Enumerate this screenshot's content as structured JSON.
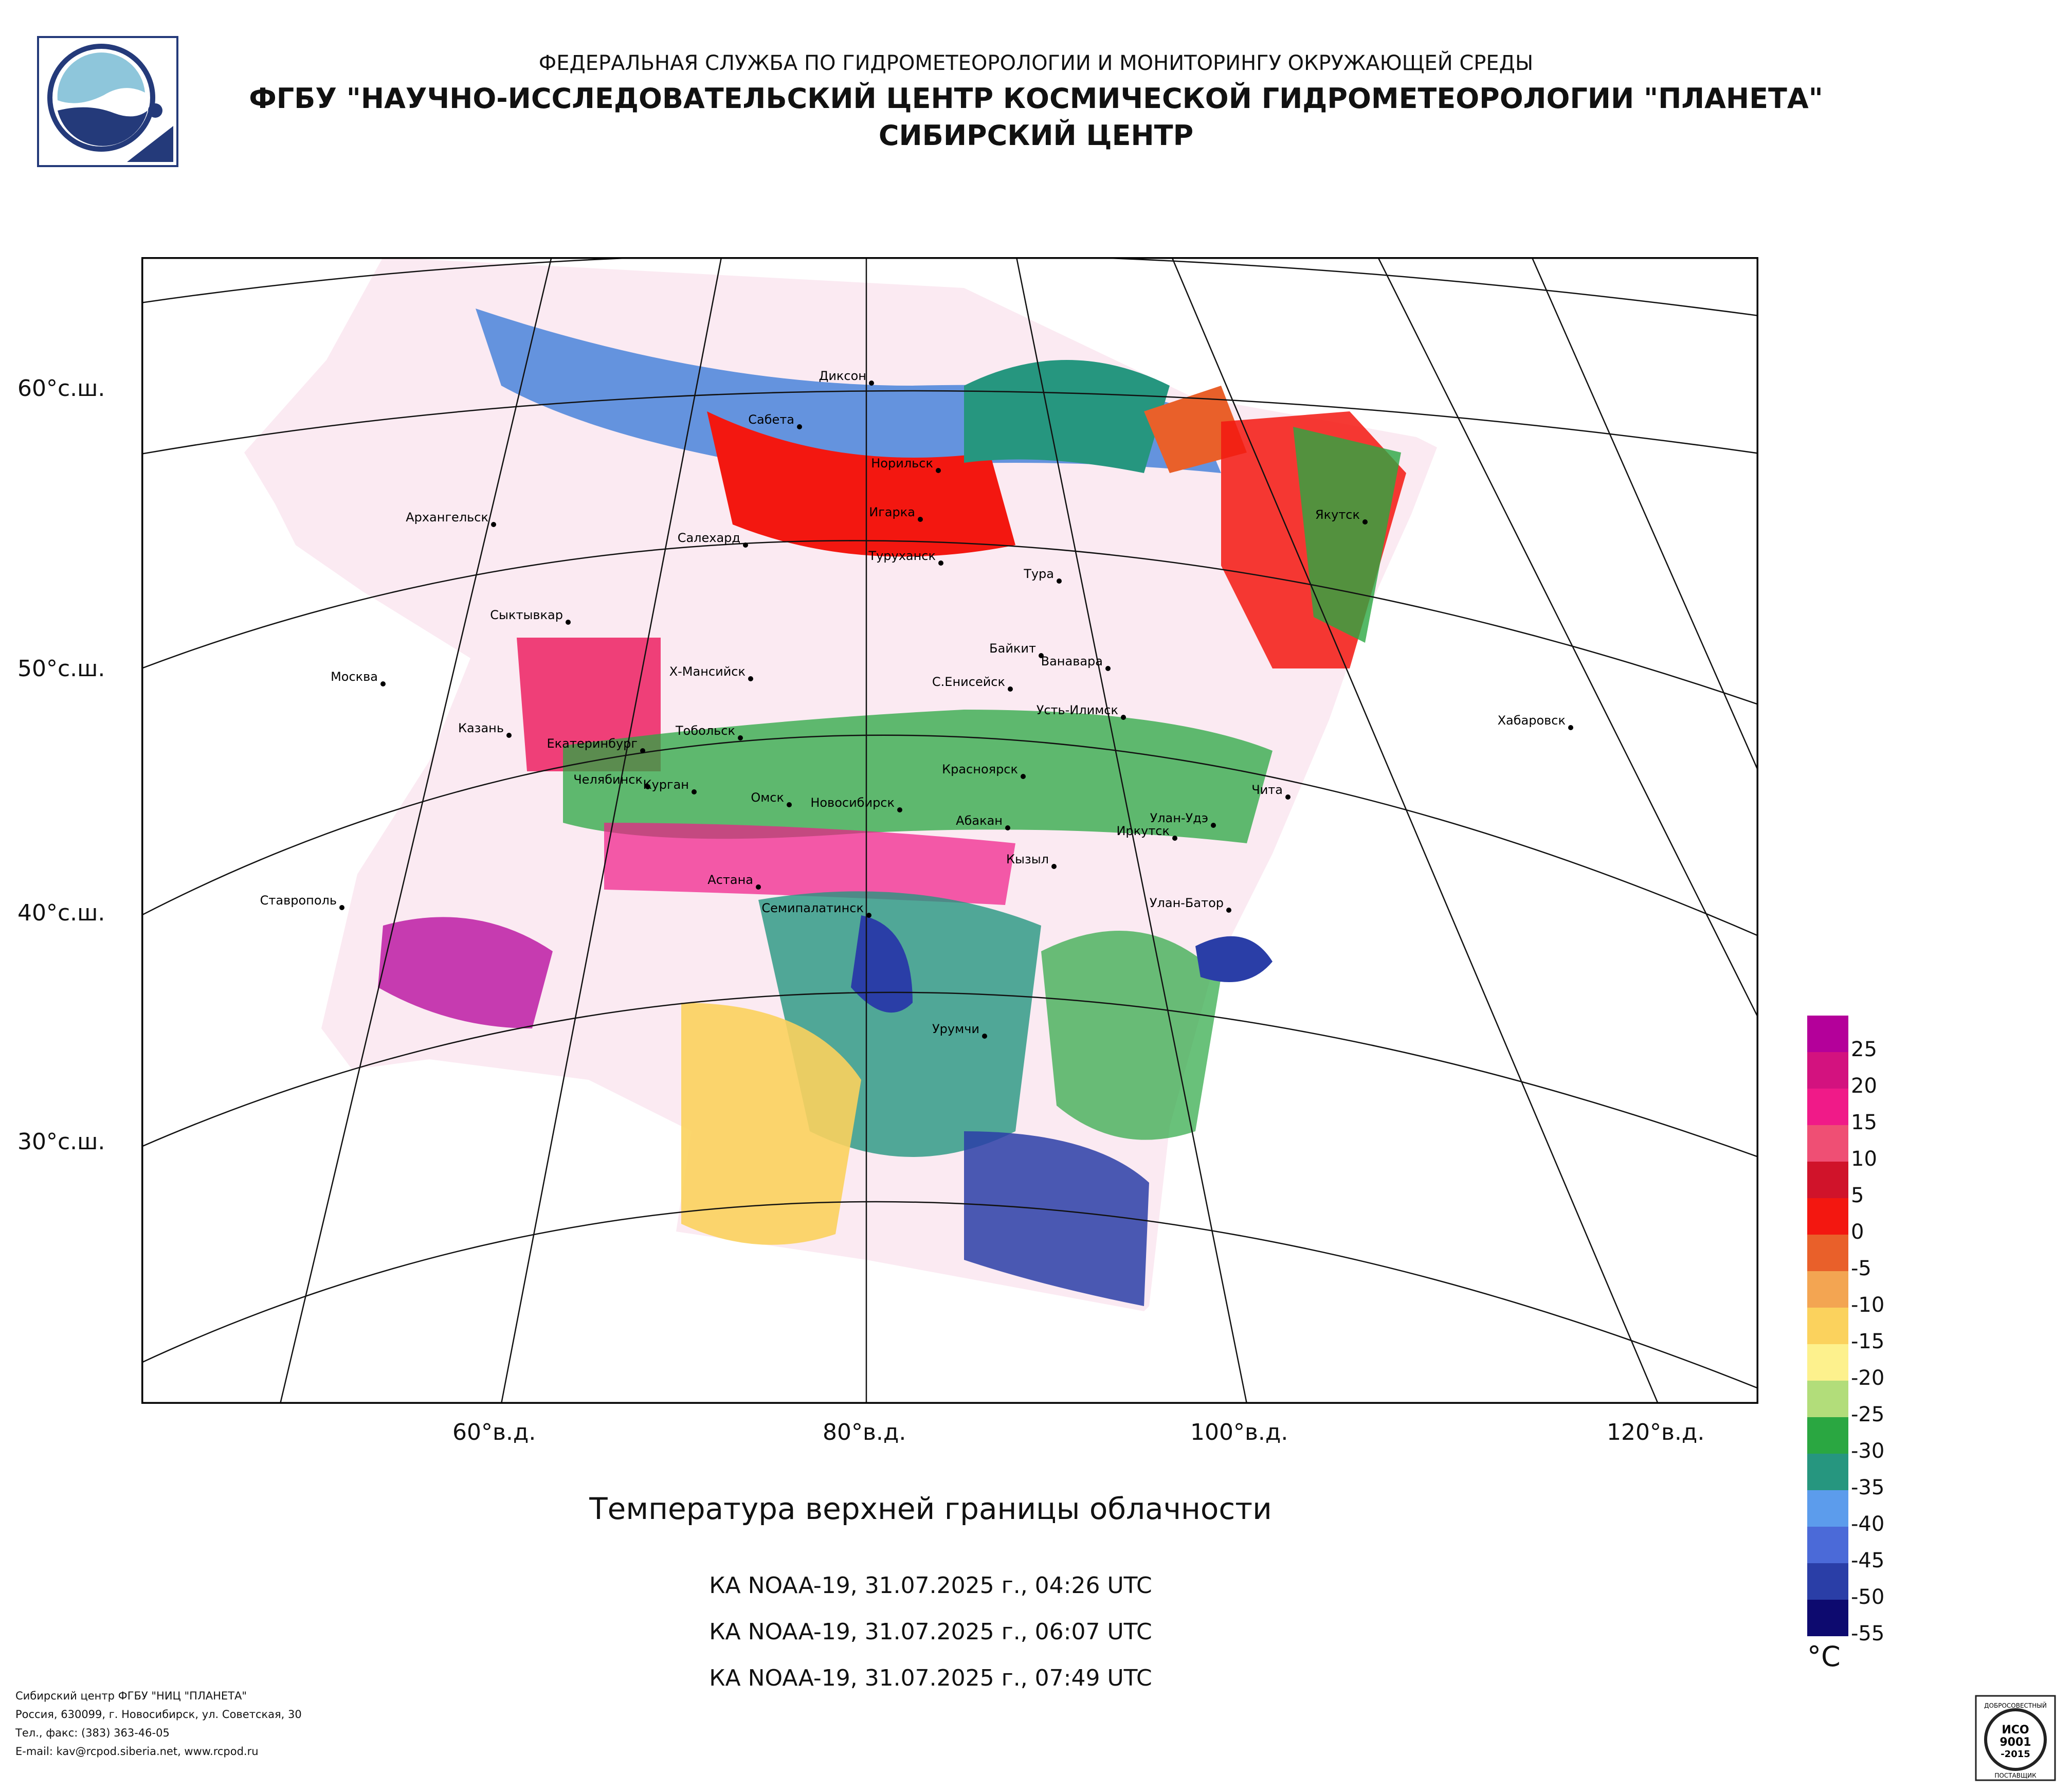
{
  "header": {
    "line1": "ФЕДЕРАЛЬНАЯ СЛУЖБА ПО ГИДРОМЕТЕОРОЛОГИИ И МОНИТОРИНГУ ОКРУЖАЮЩЕЙ СРЕДЫ",
    "line2": "ФГБУ \"НАУЧНО-ИССЛЕДОВАТЕЛЬСКИЙ ЦЕНТР КОСМИЧЕСКОЙ ГИДРОМЕТЕОРОЛОГИИ \"ПЛАНЕТА\"",
    "line3": "СИБИРСКИЙ ЦЕНТР"
  },
  "map": {
    "latitude_labels": [
      "60°с.ш.",
      "50°с.ш.",
      "40°с.ш.",
      "30°с.ш."
    ],
    "longitude_labels": [
      "60°в.д.",
      "80°в.д.",
      "100°в.д.",
      "120°в.д."
    ],
    "cities": [
      {
        "name": "Диксон"
      },
      {
        "name": "Сабета"
      },
      {
        "name": "Норильск"
      },
      {
        "name": "Игарка"
      },
      {
        "name": "Салехард"
      },
      {
        "name": "Туруханск"
      },
      {
        "name": "Тура"
      },
      {
        "name": "Якутск"
      },
      {
        "name": "Архангельск"
      },
      {
        "name": "Сыктывкар"
      },
      {
        "name": "Байкит"
      },
      {
        "name": "Ванавара"
      },
      {
        "name": "Х-Мансийск"
      },
      {
        "name": "С.Енисейск"
      },
      {
        "name": "Москва"
      },
      {
        "name": "Усть-Илимск"
      },
      {
        "name": "Хабаровск"
      },
      {
        "name": "Казань"
      },
      {
        "name": "Тобольск"
      },
      {
        "name": "Екатеринбург"
      },
      {
        "name": "Красноярск"
      },
      {
        "name": "Челябинск"
      },
      {
        "name": "Курган"
      },
      {
        "name": "Омск"
      },
      {
        "name": "Новосибирск"
      },
      {
        "name": "Абакан"
      },
      {
        "name": "Чита"
      },
      {
        "name": "Улан-Удэ"
      },
      {
        "name": "Иркутск"
      },
      {
        "name": "Кызыл"
      },
      {
        "name": "Астана"
      },
      {
        "name": "Семипалатинск"
      },
      {
        "name": "Улан-Батор"
      },
      {
        "name": "Ставрополь"
      },
      {
        "name": "Урумчи"
      }
    ]
  },
  "title": "Температура верхней границы облачности",
  "passes": [
    "КА NOAA-19, 31.07.2025 г., 04:26 UTC",
    "КА NOAA-19, 31.07.2025 г., 06:07 UTC",
    "КА NOAA-19, 31.07.2025 г., 07:49 UTC"
  ],
  "legend": {
    "unit": "°C",
    "values": [
      "25",
      "20",
      "15",
      "10",
      "5",
      "0",
      "-5",
      "-10",
      "-15",
      "-20",
      "-25",
      "-30",
      "-35",
      "-40",
      "-45",
      "-50",
      "-55"
    ],
    "colors": [
      "#b4009a",
      "#d3127f",
      "#f01a88",
      "#ef4f74",
      "#d0132a",
      "#f31710",
      "#e9602a",
      "#f3a552",
      "#fbd25d",
      "#fdf18d",
      "#b2dd7a",
      "#2aa741",
      "#26967f",
      "#5c9cec",
      "#4b6ad8",
      "#2a3ea7",
      "#0d0a6f"
    ]
  },
  "footer": [
    "Сибирский центр ФГБУ \"НИЦ \"ПЛАНЕТА\"",
    "Россия, 630099, г. Новосибирск, ул. Советская, 30",
    "Тел., факс: (383) 363-46-05",
    "E-mail: kav@rcpod.siberia.net, www.rcpod.ru"
  ],
  "certificate": {
    "top": "ДОБРОСОВЕСТНЫЙ",
    "mid1": "ИСО",
    "mid2": "9001",
    "mid3": "-2015",
    "bottom": "ПОСТАВЩИК"
  }
}
